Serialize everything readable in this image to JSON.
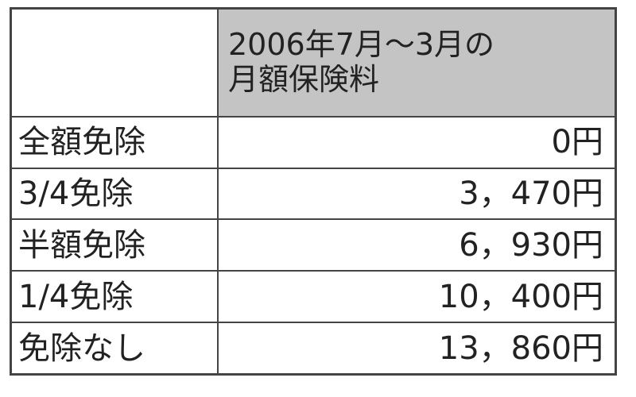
{
  "table": {
    "header": {
      "corner": "",
      "column_line1": "2006年7月～3月の",
      "column_line2": "月額保険料"
    },
    "header_bg_color": "#c4c4c4",
    "rows": [
      {
        "label": "全額免除",
        "value": "0円"
      },
      {
        "label": "3/4免除",
        "value": "3，470円"
      },
      {
        "label": "半額免除",
        "value": "6，930円"
      },
      {
        "label": "1/4免除",
        "value": "10，400円"
      },
      {
        "label": "免除なし",
        "value": "13，860円"
      }
    ]
  }
}
